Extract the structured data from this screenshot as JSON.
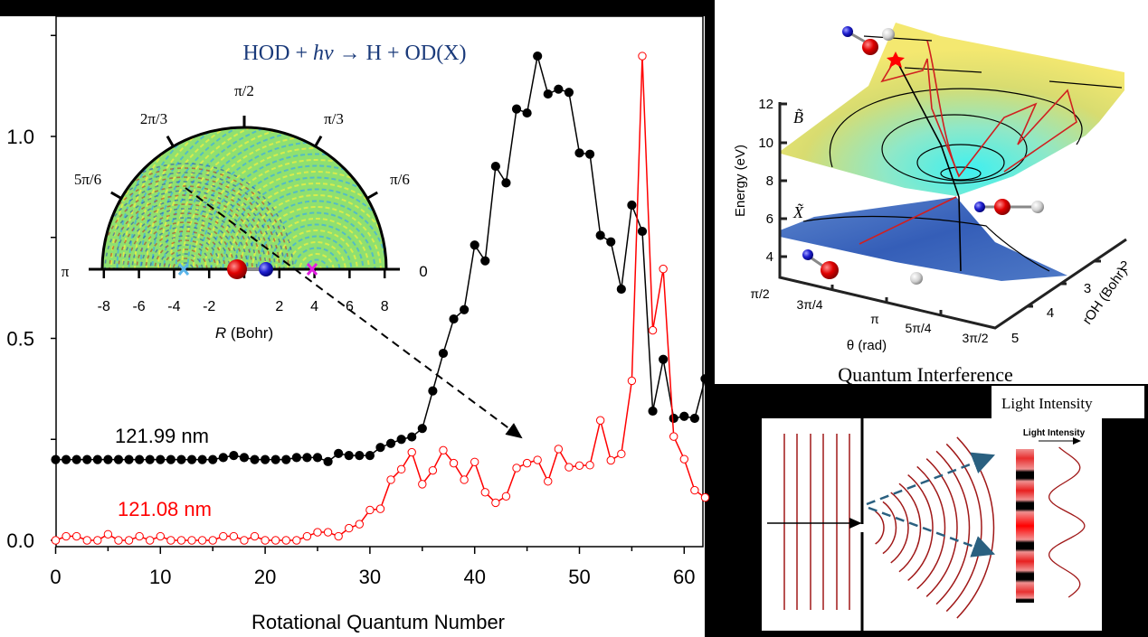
{
  "chart_data": [
    {
      "type": "line",
      "title": "HOD + hν → H + OD(X)",
      "title_parts": {
        "pre": "HOD + ",
        "italic": "hν",
        "post": " → H + OD(X)"
      },
      "xlabel": "Rotational Quantum Number",
      "ylabel": "",
      "xlim": [
        0,
        62
      ],
      "ylim": [
        -0.015,
        1.3
      ],
      "xticks": [
        "0",
        "10",
        "20",
        "30",
        "40",
        "50",
        "60"
      ],
      "yticks": [
        "0.0",
        "0.5",
        "1.0"
      ],
      "grid": false,
      "x": [
        0,
        1,
        2,
        3,
        4,
        5,
        6,
        7,
        8,
        9,
        10,
        11,
        12,
        13,
        14,
        15,
        16,
        17,
        18,
        19,
        20,
        21,
        22,
        23,
        24,
        25,
        26,
        27,
        28,
        29,
        30,
        31,
        32,
        33,
        34,
        35,
        36,
        37,
        38,
        39,
        40,
        41,
        42,
        43,
        44,
        45,
        46,
        47,
        48,
        49,
        50,
        51,
        52,
        53,
        54,
        55,
        56,
        57,
        58,
        59,
        60,
        61,
        62
      ],
      "series": [
        {
          "name": "121.99 nm",
          "color": "#000000",
          "marker": "filled-circle",
          "values": [
            0.2,
            0.2,
            0.2,
            0.2,
            0.2,
            0.2,
            0.2,
            0.2,
            0.2,
            0.2,
            0.2,
            0.2,
            0.2,
            0.2,
            0.2,
            0.2,
            0.205,
            0.21,
            0.205,
            0.2,
            0.2,
            0.2,
            0.2,
            0.205,
            0.205,
            0.205,
            0.195,
            0.215,
            0.21,
            0.21,
            0.21,
            0.23,
            0.24,
            0.25,
            0.256,
            0.277,
            0.37,
            0.463,
            0.548,
            0.571,
            0.731,
            0.692,
            0.926,
            0.885,
            1.068,
            1.058,
            1.199,
            1.105,
            1.117,
            1.109,
            0.959,
            0.956,
            0.755,
            0.739,
            0.622,
            0.83,
            0.765,
            0.32,
            0.448,
            0.302,
            0.307,
            0.302,
            0.4
          ]
        },
        {
          "name": "121.08 nm",
          "color": "#ff0000",
          "marker": "open-circle",
          "values": [
            0.0,
            0.01,
            0.01,
            0.0,
            0.0,
            0.015,
            0.0,
            0.0,
            0.01,
            0.0,
            0.01,
            0.0,
            0.0,
            0.0,
            0.0,
            0.0,
            0.01,
            0.01,
            0.0,
            0.01,
            0.0,
            0.0,
            0.0,
            0.0,
            0.01,
            0.02,
            0.02,
            0.01,
            0.03,
            0.04,
            0.075,
            0.078,
            0.15,
            0.176,
            0.218,
            0.139,
            0.173,
            0.223,
            0.191,
            0.15,
            0.194,
            0.119,
            0.093,
            0.109,
            0.179,
            0.191,
            0.199,
            0.146,
            0.226,
            0.181,
            0.185,
            0.186,
            0.297,
            0.198,
            0.214,
            0.395,
            1.199,
            0.52,
            0.672,
            0.257,
            0.201,
            0.124,
            0.106
          ]
        }
      ]
    }
  ],
  "inset_polar": {
    "angle_labels": [
      "π/2",
      "2π/3",
      "π/3",
      "5π/6",
      "π/6",
      "π",
      "0"
    ],
    "r_ticks": [
      "-8",
      "-6",
      "-4",
      "-2",
      "2",
      "4",
      "6",
      "8"
    ],
    "r_label_italic": "R",
    "r_label_rest": " (Bohr)",
    "marker_colors": {
      "left_cross": "#5ab4e8",
      "right_cross": "#e020e0"
    }
  },
  "surface_panel": {
    "state_upper": "B̃",
    "state_lower": "X̃",
    "energy_axis_label": "Energy (eV)",
    "energy_ticks": [
      "12",
      "10",
      "8",
      "6",
      "4"
    ],
    "theta_axis_label": "θ (rad)",
    "theta_ticks": [
      "π/2",
      "3π/4",
      "π",
      "5π/4",
      "3π/2"
    ],
    "roh_axis_label": "rOH (Bohr)",
    "roh_ticks": [
      "2",
      "3",
      "4",
      "5"
    ],
    "caption": "Quantum Interference"
  },
  "interference_panel": {
    "heading": "Light Intensity",
    "diagram_label": "Light Intensity",
    "wave_color": "#a01818",
    "ray_color": "#2a6080"
  }
}
